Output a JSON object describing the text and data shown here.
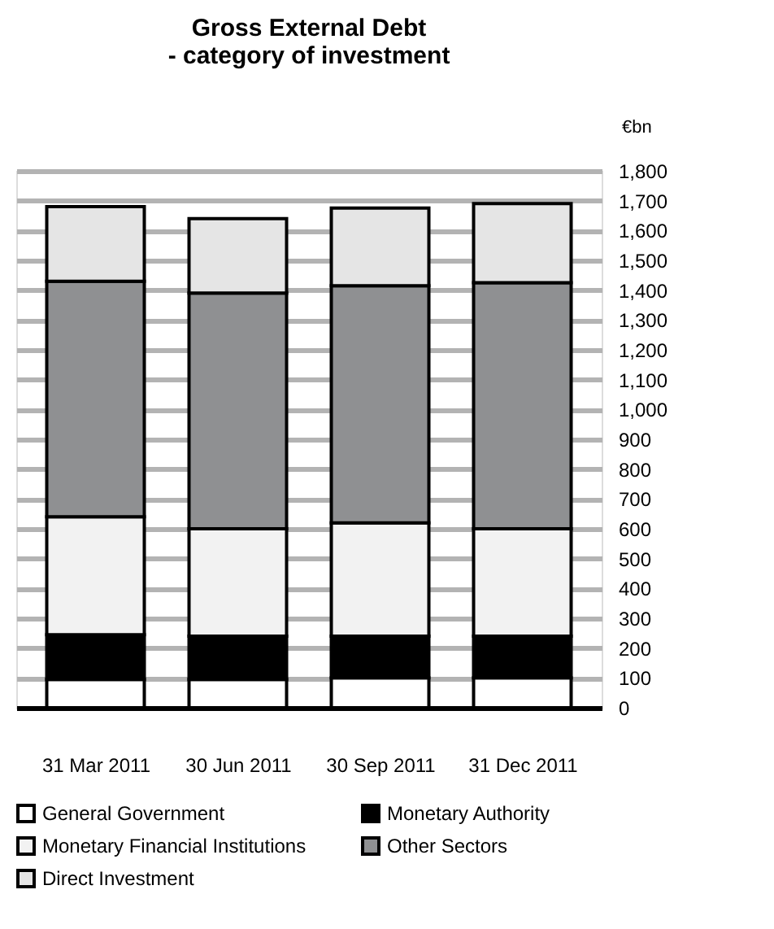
{
  "chart_data": {
    "type": "bar",
    "stacked": true,
    "title": [
      "Gross External Debt",
      "- category of investment"
    ],
    "ylabel": "€bn",
    "categories": [
      "31 Mar 2011",
      "30 Jun 2011",
      "30 Sep  2011",
      "31 Dec 2011"
    ],
    "series": [
      {
        "name": "General Government",
        "color": "#ffffff",
        "values": [
          95,
          95,
          100,
          100
        ]
      },
      {
        "name": "Monetary Authority",
        "color": "#000000",
        "values": [
          150,
          145,
          140,
          140
        ]
      },
      {
        "name": "Monetary Financial Institutions",
        "color": "#f2f2f2",
        "values": [
          395,
          360,
          380,
          360
        ]
      },
      {
        "name": "Other Sectors",
        "color": "#8f9092",
        "values": [
          790,
          790,
          795,
          825
        ]
      },
      {
        "name": "Direct Investment",
        "color": "#e5e5e5",
        "values": [
          250,
          250,
          260,
          265
        ]
      }
    ],
    "ylim": [
      0,
      1800
    ],
    "yticks": [
      0,
      100,
      200,
      300,
      400,
      500,
      600,
      700,
      800,
      900,
      {
        "value": 1000,
        "label": "1,000"
      },
      {
        "value": 1100,
        "label": "1,100"
      },
      {
        "value": 1200,
        "label": "1,200"
      },
      {
        "value": 1300,
        "label": "1,300"
      },
      {
        "value": 1400,
        "label": "1,400"
      },
      {
        "value": 1500,
        "label": "1,500"
      },
      {
        "value": 1600,
        "label": "1,600"
      },
      {
        "value": 1700,
        "label": "1,700"
      },
      {
        "value": 1800,
        "label": "1,800"
      }
    ],
    "grid": "y",
    "legend": "bottom"
  }
}
